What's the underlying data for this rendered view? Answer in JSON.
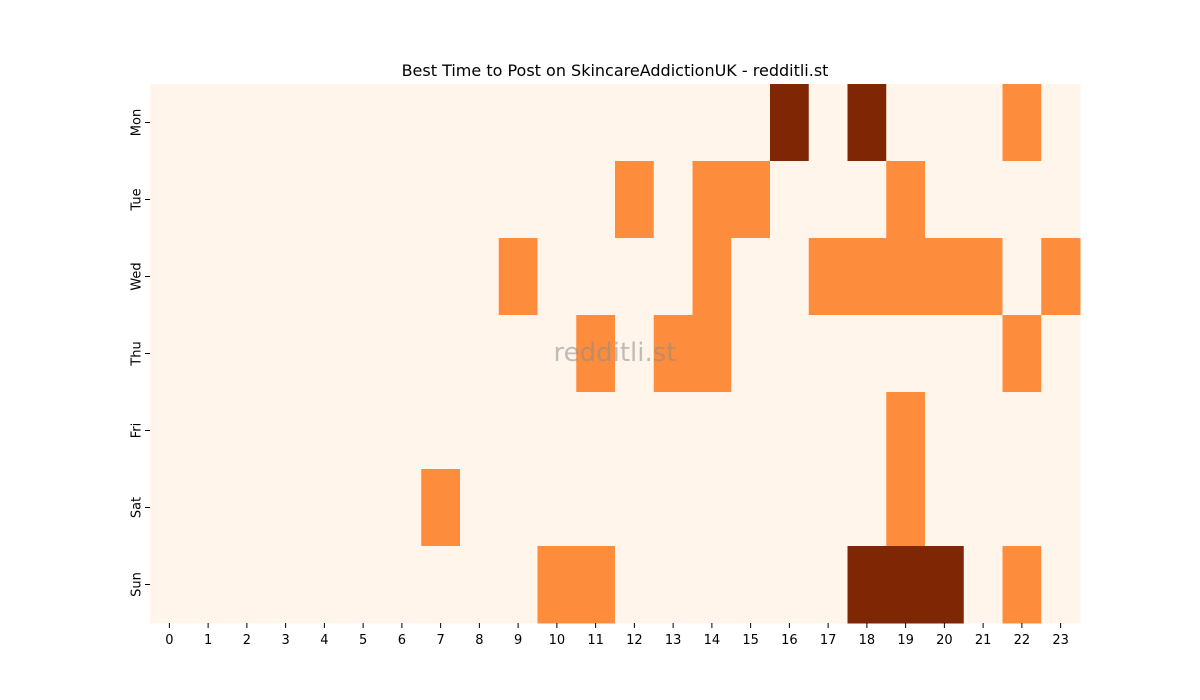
{
  "chart_data": {
    "type": "heatmap",
    "title": "Best Time to Post on SkincareAddictionUK - redditli.st",
    "watermark": "redditli.st",
    "xlabel": "",
    "ylabel": "",
    "x": [
      "0",
      "1",
      "2",
      "3",
      "4",
      "5",
      "6",
      "7",
      "8",
      "9",
      "10",
      "11",
      "12",
      "13",
      "14",
      "15",
      "16",
      "17",
      "18",
      "19",
      "20",
      "21",
      "22",
      "23"
    ],
    "y": [
      "Mon",
      "Tue",
      "Wed",
      "Thu",
      "Fri",
      "Sat",
      "Sun"
    ],
    "values": [
      [
        0,
        0,
        0,
        0,
        0,
        0,
        0,
        0,
        0,
        0,
        0,
        0,
        0,
        0,
        0,
        0,
        2,
        0,
        2,
        0,
        0,
        0,
        1,
        0
      ],
      [
        0,
        0,
        0,
        0,
        0,
        0,
        0,
        0,
        0,
        0,
        0,
        0,
        1,
        0,
        1,
        1,
        0,
        0,
        0,
        1,
        0,
        0,
        0,
        0
      ],
      [
        0,
        0,
        0,
        0,
        0,
        0,
        0,
        0,
        0,
        1,
        0,
        0,
        0,
        0,
        1,
        0,
        0,
        1,
        1,
        1,
        1,
        1,
        0,
        1
      ],
      [
        0,
        0,
        0,
        0,
        0,
        0,
        0,
        0,
        0,
        0,
        0,
        1,
        0,
        1,
        1,
        0,
        0,
        0,
        0,
        0,
        0,
        0,
        1,
        0
      ],
      [
        0,
        0,
        0,
        0,
        0,
        0,
        0,
        0,
        0,
        0,
        0,
        0,
        0,
        0,
        0,
        0,
        0,
        0,
        0,
        1,
        0,
        0,
        0,
        0
      ],
      [
        0,
        0,
        0,
        0,
        0,
        0,
        0,
        1,
        0,
        0,
        0,
        0,
        0,
        0,
        0,
        0,
        0,
        0,
        0,
        1,
        0,
        0,
        0,
        0
      ],
      [
        0,
        0,
        0,
        0,
        0,
        0,
        0,
        0,
        0,
        0,
        1,
        1,
        0,
        0,
        0,
        0,
        0,
        0,
        2,
        2,
        2,
        0,
        1,
        0
      ]
    ],
    "colormap": "Oranges",
    "colors": [
      "#fff5eb",
      "#fd8d3c",
      "#7f2704"
    ],
    "grid": false,
    "legend": "none"
  }
}
